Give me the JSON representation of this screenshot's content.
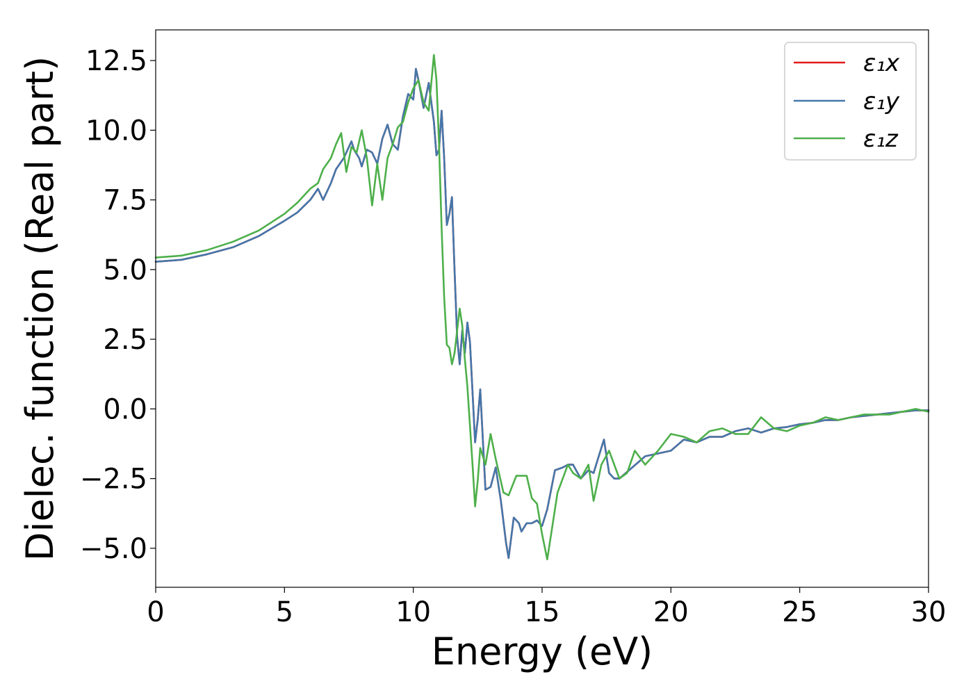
{
  "chart_data": {
    "type": "line",
    "xlabel": "Energy (eV)",
    "ylabel": "Dielec. function (Real part)",
    "xlim": [
      0,
      30
    ],
    "ylim": [
      -6.4,
      13.6
    ],
    "xticks": [
      0,
      5,
      10,
      15,
      20,
      25,
      30
    ],
    "xtick_labels": [
      "0",
      "5",
      "10",
      "15",
      "20",
      "25",
      "30"
    ],
    "yticks": [
      -5.0,
      -2.5,
      0.0,
      2.5,
      5.0,
      7.5,
      10.0,
      12.5
    ],
    "ytick_labels": [
      "−5.0",
      "−2.5",
      "0.0",
      "2.5",
      "5.0",
      "7.5",
      "10.0",
      "12.5"
    ],
    "grid": false,
    "legend_position": "top-right",
    "series": [
      {
        "name": "ε₁x",
        "color": "#e41a1c",
        "x": [
          0,
          1,
          2,
          3,
          4,
          5,
          5.5,
          6,
          6.3,
          6.5,
          6.8,
          7.0,
          7.3,
          7.6,
          7.7,
          7.9,
          8.0,
          8.2,
          8.4,
          8.6,
          8.8,
          9.0,
          9.2,
          9.4,
          9.6,
          9.8,
          10.0,
          10.1,
          10.2,
          10.4,
          10.6,
          10.8,
          10.9,
          11.0,
          11.1,
          11.2,
          11.3,
          11.4,
          11.5,
          11.6,
          11.7,
          11.8,
          11.9,
          12.0,
          12.1,
          12.2,
          12.4,
          12.5,
          12.6,
          12.8,
          13.0,
          13.2,
          13.4,
          13.6,
          13.7,
          13.9,
          14.1,
          14.2,
          14.4,
          14.6,
          14.8,
          15.0,
          15.2,
          15.5,
          15.8,
          16.0,
          16.2,
          16.5,
          16.8,
          17.0,
          17.2,
          17.4,
          17.6,
          17.8,
          18.0,
          18.5,
          19.0,
          19.5,
          20.0,
          20.5,
          21.0,
          21.5,
          22.0,
          22.5,
          23.0,
          23.5,
          24.0,
          24.5,
          25.0,
          25.5,
          26.0,
          26.5,
          27.0,
          27.5,
          28.0,
          28.5,
          29.0,
          29.5,
          30.0
        ],
        "y": [
          5.28,
          5.35,
          5.55,
          5.8,
          6.2,
          6.75,
          7.05,
          7.5,
          7.9,
          7.5,
          8.1,
          8.6,
          9.0,
          9.6,
          9.3,
          9.0,
          8.7,
          9.3,
          9.2,
          8.8,
          9.7,
          10.2,
          9.5,
          9.3,
          10.5,
          11.3,
          11.1,
          12.2,
          11.8,
          10.8,
          11.7,
          10.3,
          9.1,
          9.3,
          10.7,
          9.0,
          6.6,
          7.0,
          7.6,
          5.0,
          2.6,
          1.6,
          2.8,
          2.0,
          3.1,
          2.4,
          -1.2,
          -0.4,
          0.7,
          -2.9,
          -2.8,
          -2.1,
          -3.3,
          -4.8,
          -5.35,
          -3.9,
          -4.1,
          -4.4,
          -4.1,
          -4.1,
          -4.0,
          -4.2,
          -3.6,
          -2.2,
          -2.1,
          -2.0,
          -2.0,
          -2.5,
          -2.2,
          -2.3,
          -1.7,
          -1.1,
          -2.3,
          -2.5,
          -2.5,
          -2.1,
          -1.7,
          -1.6,
          -1.5,
          -1.1,
          -1.2,
          -1.0,
          -1.0,
          -0.8,
          -0.7,
          -0.85,
          -0.7,
          -0.65,
          -0.55,
          -0.5,
          -0.4,
          -0.4,
          -0.3,
          -0.25,
          -0.2,
          -0.15,
          -0.1,
          -0.05,
          -0.05
        ]
      },
      {
        "name": "ε₁y",
        "color": "#4477aa",
        "x": [
          0,
          1,
          2,
          3,
          4,
          5,
          5.5,
          6,
          6.3,
          6.5,
          6.8,
          7.0,
          7.3,
          7.6,
          7.7,
          7.9,
          8.0,
          8.2,
          8.4,
          8.6,
          8.8,
          9.0,
          9.2,
          9.4,
          9.6,
          9.8,
          10.0,
          10.1,
          10.2,
          10.4,
          10.6,
          10.8,
          10.9,
          11.0,
          11.1,
          11.2,
          11.3,
          11.4,
          11.5,
          11.6,
          11.7,
          11.8,
          11.9,
          12.0,
          12.1,
          12.2,
          12.4,
          12.5,
          12.6,
          12.8,
          13.0,
          13.2,
          13.4,
          13.6,
          13.7,
          13.9,
          14.1,
          14.2,
          14.4,
          14.6,
          14.8,
          15.0,
          15.2,
          15.5,
          15.8,
          16.0,
          16.2,
          16.5,
          16.8,
          17.0,
          17.2,
          17.4,
          17.6,
          17.8,
          18.0,
          18.5,
          19.0,
          19.5,
          20.0,
          20.5,
          21.0,
          21.5,
          22.0,
          22.5,
          23.0,
          23.5,
          24.0,
          24.5,
          25.0,
          25.5,
          26.0,
          26.5,
          27.0,
          27.5,
          28.0,
          28.5,
          29.0,
          29.5,
          30.0
        ],
        "y": [
          5.28,
          5.35,
          5.55,
          5.8,
          6.2,
          6.75,
          7.05,
          7.5,
          7.9,
          7.5,
          8.1,
          8.6,
          9.0,
          9.6,
          9.3,
          9.0,
          8.7,
          9.3,
          9.2,
          8.8,
          9.7,
          10.2,
          9.5,
          9.3,
          10.5,
          11.3,
          11.1,
          12.2,
          11.8,
          10.8,
          11.7,
          10.3,
          9.1,
          9.3,
          10.7,
          9.0,
          6.6,
          7.0,
          7.6,
          5.0,
          2.6,
          1.6,
          2.8,
          2.0,
          3.1,
          2.4,
          -1.2,
          -0.4,
          0.7,
          -2.9,
          -2.8,
          -2.1,
          -3.3,
          -4.8,
          -5.35,
          -3.9,
          -4.1,
          -4.4,
          -4.1,
          -4.1,
          -4.0,
          -4.2,
          -3.6,
          -2.2,
          -2.1,
          -2.0,
          -2.0,
          -2.5,
          -2.2,
          -2.3,
          -1.7,
          -1.1,
          -2.3,
          -2.5,
          -2.5,
          -2.1,
          -1.7,
          -1.6,
          -1.5,
          -1.1,
          -1.2,
          -1.0,
          -1.0,
          -0.8,
          -0.7,
          -0.85,
          -0.7,
          -0.65,
          -0.55,
          -0.5,
          -0.4,
          -0.4,
          -0.3,
          -0.25,
          -0.2,
          -0.15,
          -0.1,
          -0.05,
          -0.05
        ]
      },
      {
        "name": "ε₁z",
        "color": "#4daf4a",
        "x": [
          0,
          1,
          2,
          3,
          4,
          5,
          5.5,
          6,
          6.3,
          6.5,
          6.8,
          7.0,
          7.2,
          7.4,
          7.6,
          7.8,
          8.0,
          8.2,
          8.4,
          8.6,
          8.8,
          9.0,
          9.2,
          9.4,
          9.6,
          9.8,
          10.0,
          10.2,
          10.4,
          10.6,
          10.8,
          10.9,
          11.0,
          11.1,
          11.2,
          11.3,
          11.4,
          11.5,
          11.6,
          11.8,
          11.9,
          12.0,
          12.1,
          12.2,
          12.3,
          12.4,
          12.5,
          12.6,
          12.8,
          13.0,
          13.2,
          13.5,
          13.7,
          14.0,
          14.2,
          14.4,
          14.6,
          14.8,
          15.0,
          15.2,
          15.4,
          15.6,
          15.8,
          16.0,
          16.2,
          16.5,
          16.8,
          17.0,
          17.3,
          17.6,
          17.8,
          18.0,
          18.3,
          18.6,
          19.0,
          19.5,
          20.0,
          20.5,
          21.0,
          21.5,
          22.0,
          22.5,
          23.0,
          23.5,
          24.0,
          24.5,
          25.0,
          25.5,
          26.0,
          26.5,
          27.0,
          27.5,
          28.0,
          28.5,
          29.0,
          29.5,
          30.0
        ],
        "y": [
          5.43,
          5.5,
          5.7,
          6.0,
          6.4,
          7.0,
          7.4,
          7.9,
          8.1,
          8.6,
          9.0,
          9.5,
          9.9,
          8.5,
          9.4,
          9.2,
          10.0,
          9.0,
          7.3,
          8.8,
          7.5,
          9.0,
          9.5,
          10.1,
          10.3,
          11.0,
          11.5,
          11.8,
          11.0,
          10.7,
          12.7,
          11.8,
          9.5,
          6.5,
          4.0,
          2.3,
          2.2,
          1.6,
          2.0,
          3.6,
          3.0,
          1.8,
          0.8,
          -0.6,
          -2.0,
          -3.5,
          -2.6,
          -1.4,
          -2.0,
          -0.9,
          -1.8,
          -3.0,
          -3.1,
          -2.4,
          -2.4,
          -2.4,
          -3.2,
          -3.4,
          -4.5,
          -5.4,
          -4.2,
          -3.0,
          -2.5,
          -2.0,
          -2.3,
          -2.5,
          -2.0,
          -3.3,
          -2.0,
          -1.5,
          -2.0,
          -2.5,
          -2.3,
          -1.5,
          -2.0,
          -1.5,
          -0.9,
          -1.0,
          -1.2,
          -0.8,
          -0.7,
          -0.9,
          -0.9,
          -0.3,
          -0.7,
          -0.8,
          -0.6,
          -0.5,
          -0.3,
          -0.4,
          -0.3,
          -0.2,
          -0.2,
          -0.2,
          -0.1,
          0.0,
          -0.1
        ]
      }
    ]
  }
}
